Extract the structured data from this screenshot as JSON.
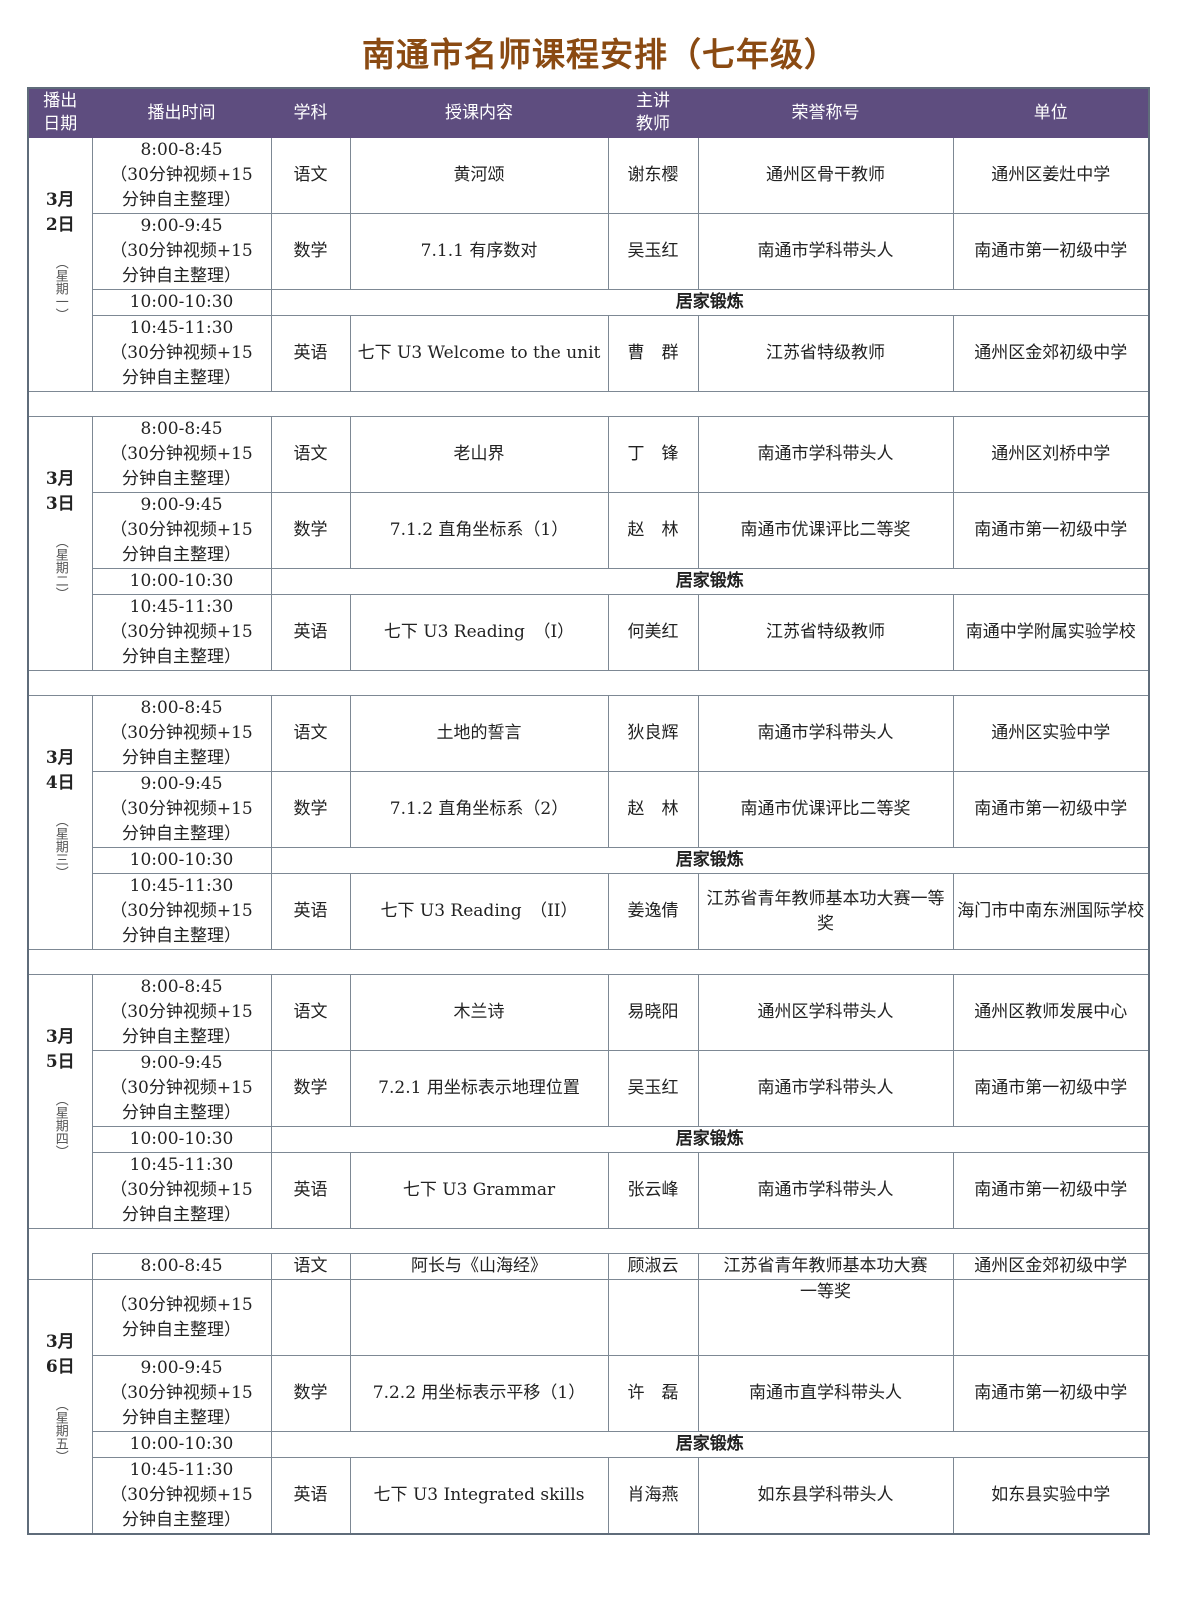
{
  "title": "南通市名师课程安排（七年级）",
  "columns": [
    "播出\n日期",
    "播出时间",
    "学科",
    "授课内容",
    "主讲\n教师",
    "荣誉称号",
    "单位"
  ],
  "break_label": "居家锻炼",
  "time_note": [
    "（30分钟视频+15",
    "分钟自主整理）"
  ],
  "days": [
    {
      "date": [
        "3月",
        "2日"
      ],
      "weekday": "（星期一）",
      "lessons": [
        {
          "time": "8:00-8:45",
          "subject": "语文",
          "content": "黄河颂",
          "teacher": "谢东樱",
          "honor": "通州区骨干教师",
          "unit": "通州区姜灶中学"
        },
        {
          "time": "9:00-9:45",
          "subject": "数学",
          "content": "7.1.1 有序数对",
          "teacher": "吴玉红",
          "honor": "南通市学科带头人",
          "unit": "南通市第一初级中学"
        },
        {
          "time": "10:00-10:30",
          "break": true
        },
        {
          "time": "10:45-11:30",
          "subject": "英语",
          "content": "七下 U3 Welcome to the unit",
          "teacher": "曹　群",
          "honor": "江苏省特级教师",
          "unit": "通州区金郊初级中学"
        }
      ]
    },
    {
      "date": [
        "3月",
        "3日"
      ],
      "weekday": "（星期二）",
      "lessons": [
        {
          "time": "8:00-8:45",
          "subject": "语文",
          "content": "老山界",
          "teacher": "丁　锋",
          "honor": "南通市学科带头人",
          "unit": "通州区刘桥中学"
        },
        {
          "time": "9:00-9:45",
          "subject": "数学",
          "content": "7.1.2 直角坐标系（1）",
          "teacher": "赵　林",
          "honor": "南通市优课评比二等奖",
          "unit": "南通市第一初级中学"
        },
        {
          "time": "10:00-10:30",
          "break": true
        },
        {
          "time": "10:45-11:30",
          "subject": "英语",
          "content": "七下 U3 Reading　（I）",
          "teacher": "何美红",
          "honor": "江苏省特级教师",
          "unit": "南通中学附属实验学校"
        }
      ]
    },
    {
      "date": [
        "3月",
        "4日"
      ],
      "weekday": "（星期三）",
      "lessons": [
        {
          "time": "8:00-8:45",
          "subject": "语文",
          "content": "土地的誓言",
          "teacher": "狄良辉",
          "honor": "南通市学科带头人",
          "unit": "通州区实验中学"
        },
        {
          "time": "9:00-9:45",
          "subject": "数学",
          "content": "7.1.2 直角坐标系（2）",
          "teacher": "赵　林",
          "honor": "南通市优课评比二等奖",
          "unit": "南通市第一初级中学"
        },
        {
          "time": "10:00-10:30",
          "break": true
        },
        {
          "time": "10:45-11:30",
          "subject": "英语",
          "content": "七下 U3 Reading　（II）",
          "teacher": "姜逸倩",
          "honor": "江苏省青年教师基本功大赛一等奖",
          "unit": "海门市中南东洲国际学校"
        }
      ]
    },
    {
      "date": [
        "3月",
        "5日"
      ],
      "weekday": "（星期四）",
      "lessons": [
        {
          "time": "8:00-8:45",
          "subject": "语文",
          "content": "木兰诗",
          "teacher": "易晓阳",
          "honor": "通州区学科带头人",
          "unit": "通州区教师发展中心"
        },
        {
          "time": "9:00-9:45",
          "subject": "数学",
          "content": "7.2.1 用坐标表示地理位置",
          "teacher": "吴玉红",
          "honor": "南通市学科带头人",
          "unit": "南通市第一初级中学"
        },
        {
          "time": "10:00-10:30",
          "break": true
        },
        {
          "time": "10:45-11:30",
          "subject": "英语",
          "content": "七下 U3 Grammar",
          "teacher": "张云峰",
          "honor": "南通市学科带头人",
          "unit": "南通市第一初级中学"
        }
      ]
    },
    {
      "date": [
        "3月",
        "6日"
      ],
      "weekday": "（星期五）",
      "split_first": true,
      "lessons": [
        {
          "time": "8:00-8:45",
          "subject": "语文",
          "content": "阿长与《山海经》",
          "teacher": "顾淑云",
          "honor": "江苏省青年教师基本功大赛",
          "honor_cont": "一等奖",
          "unit": "通州区金郊初级中学"
        },
        {
          "time": "9:00-9:45",
          "subject": "数学",
          "content": "7.2.2 用坐标表示平移（1）",
          "teacher": "许　磊",
          "honor": "南通市直学科带头人",
          "unit": "南通市第一初级中学"
        },
        {
          "time": "10:00-10:30",
          "break": true
        },
        {
          "time": "10:45-11:30",
          "subject": "英语",
          "content": "七下 U3 Integrated skills",
          "teacher": "肖海燕",
          "honor": "如东县学科带头人",
          "unit": "如东县实验中学"
        }
      ]
    }
  ]
}
